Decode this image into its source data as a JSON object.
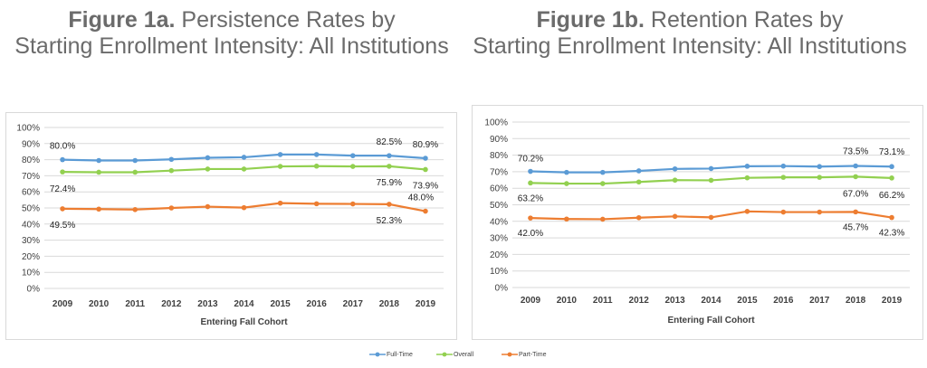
{
  "titles": {
    "a_bold": "Figure 1a.",
    "a_line1": " Persistence Rates by",
    "a_line2": "Starting Enrollment Intensity: All Institutions",
    "b_bold": "Figure 1b.",
    "b_line1": " Retention Rates by",
    "b_line2": "Starting Enrollment Intensity: All Institutions"
  },
  "legend": [
    "Full-Time",
    "Overall",
    "Part-Time"
  ],
  "colors": {
    "Full-Time": "#5b9bd5",
    "Overall": "#92d050",
    "Part-Time": "#ed7d31"
  },
  "chart_data": [
    {
      "type": "line",
      "xlabel": "Entering Fall Cohort",
      "ylabel": "",
      "x": [
        "2009",
        "2010",
        "2011",
        "2012",
        "2013",
        "2014",
        "2015",
        "2016",
        "2017",
        "2018",
        "2019"
      ],
      "y_ticks": [
        "0%",
        "10%",
        "20%",
        "30%",
        "40%",
        "50%",
        "60%",
        "70%",
        "80%",
        "90%",
        "100%"
      ],
      "ylim": [
        0,
        100
      ],
      "grid": true,
      "legend_position": "bottom",
      "series": [
        {
          "name": "Full-Time",
          "values": [
            80.0,
            79.5,
            79.5,
            80.2,
            81.2,
            81.5,
            83.2,
            83.2,
            82.5,
            82.5,
            80.9
          ]
        },
        {
          "name": "Overall",
          "values": [
            72.4,
            72.2,
            72.2,
            73.2,
            74.2,
            74.2,
            75.8,
            76.0,
            75.8,
            75.9,
            73.9
          ]
        },
        {
          "name": "Part-Time",
          "values": [
            49.5,
            49.3,
            49.0,
            50.0,
            50.8,
            50.2,
            53.0,
            52.6,
            52.5,
            52.3,
            48.0
          ]
        }
      ],
      "data_labels": [
        {
          "series": "Full-Time",
          "index": 0,
          "text": "80.0%"
        },
        {
          "series": "Full-Time",
          "index": 9,
          "text": "82.5%"
        },
        {
          "series": "Full-Time",
          "index": 10,
          "text": "80.9%"
        },
        {
          "series": "Overall",
          "index": 0,
          "text": "72.4%"
        },
        {
          "series": "Overall",
          "index": 9,
          "text": "75.9%"
        },
        {
          "series": "Overall",
          "index": 10,
          "text": "73.9%"
        },
        {
          "series": "Part-Time",
          "index": 0,
          "text": "49.5%"
        },
        {
          "series": "Part-Time",
          "index": 9,
          "text": "52.3%"
        },
        {
          "series": "Part-Time",
          "index": 10,
          "text": "48.0%"
        }
      ]
    },
    {
      "type": "line",
      "xlabel": "Entering Fall Cohort",
      "ylabel": "",
      "x": [
        "2009",
        "2010",
        "2011",
        "2012",
        "2013",
        "2014",
        "2015",
        "2016",
        "2017",
        "2018",
        "2019"
      ],
      "y_ticks": [
        "0%",
        "10%",
        "20%",
        "30%",
        "40%",
        "50%",
        "60%",
        "70%",
        "80%",
        "90%",
        "100%"
      ],
      "ylim": [
        0,
        100
      ],
      "grid": true,
      "legend_position": "bottom",
      "series": [
        {
          "name": "Full-Time",
          "values": [
            70.2,
            69.6,
            69.6,
            70.5,
            71.7,
            71.9,
            73.3,
            73.4,
            73.1,
            73.5,
            73.1
          ]
        },
        {
          "name": "Overall",
          "values": [
            63.2,
            62.8,
            62.8,
            63.8,
            64.9,
            64.8,
            66.3,
            66.6,
            66.6,
            67.0,
            66.2
          ]
        },
        {
          "name": "Part-Time",
          "values": [
            42.0,
            41.4,
            41.3,
            42.2,
            43.0,
            42.4,
            46.0,
            45.6,
            45.6,
            45.7,
            42.3
          ]
        }
      ],
      "data_labels": [
        {
          "series": "Full-Time",
          "index": 0,
          "text": "70.2%"
        },
        {
          "series": "Full-Time",
          "index": 9,
          "text": "73.5%"
        },
        {
          "series": "Full-Time",
          "index": 10,
          "text": "73.1%"
        },
        {
          "series": "Overall",
          "index": 0,
          "text": "63.2%"
        },
        {
          "series": "Overall",
          "index": 9,
          "text": "67.0%"
        },
        {
          "series": "Overall",
          "index": 10,
          "text": "66.2%"
        },
        {
          "series": "Part-Time",
          "index": 0,
          "text": "42.0%"
        },
        {
          "series": "Part-Time",
          "index": 9,
          "text": "45.7%"
        },
        {
          "series": "Part-Time",
          "index": 10,
          "text": "42.3%"
        }
      ]
    }
  ]
}
